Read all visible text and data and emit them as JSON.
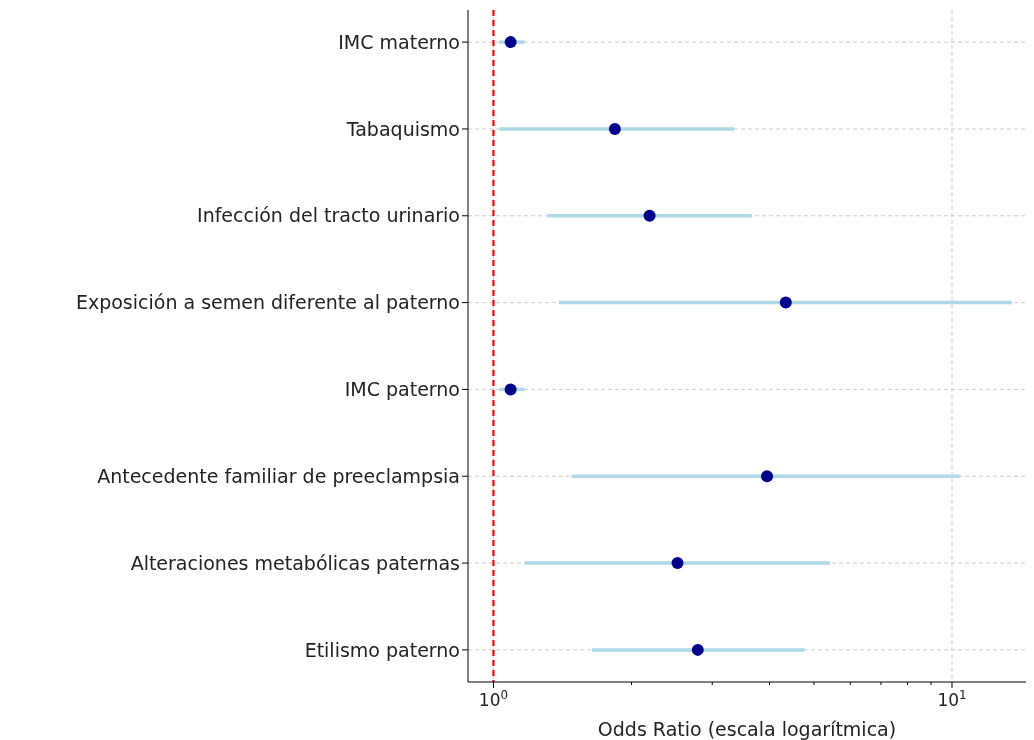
{
  "chart_data": {
    "type": "scatter",
    "orientation": "horizontal",
    "log": "x",
    "xlabel": "Odds Ratio (escala logarítmica)",
    "categories": [
      "IMC materno",
      "Tabaquismo",
      "Infección del tracto urinario",
      "Exposición a semen diferente al paterno",
      "IMC paterno",
      "Antecedente familiar de preeclampsia",
      "Alteraciones metabólicas paternas",
      "Etilismo paterno"
    ],
    "series": [
      {
        "color": "#00008b",
        "values": [
          1.09,
          1.84,
          2.19,
          4.34,
          1.09,
          3.95,
          2.52,
          2.79
        ],
        "errors": [
          [
            1.03,
            1.17
          ],
          [
            1.03,
            3.35
          ],
          [
            1.31,
            3.66
          ],
          [
            1.39,
            13.5
          ],
          [
            1.03,
            1.17
          ],
          [
            1.48,
            10.4
          ],
          [
            1.17,
            5.42
          ],
          [
            1.64,
            4.77
          ]
        ]
      }
    ],
    "xlim": [
      0.88,
      14.5
    ],
    "xticks": [
      {
        "value": 1,
        "label": "10$^{0}$"
      },
      {
        "value": 2,
        "label": null
      },
      {
        "value": 3,
        "label": null
      },
      {
        "value": 4,
        "label": null
      },
      {
        "value": 5,
        "label": null
      },
      {
        "value": 6,
        "label": null
      },
      {
        "value": 7,
        "label": null
      },
      {
        "value": 8,
        "label": null
      },
      {
        "value": 9,
        "label": null
      },
      {
        "value": 10,
        "label": "10$^{1}$"
      }
    ],
    "ref_lines": [
      {
        "axis": "x",
        "value": 1,
        "color": "#ff0000",
        "line_style": "dashed"
      }
    ],
    "grid": true,
    "marker": "circle"
  }
}
